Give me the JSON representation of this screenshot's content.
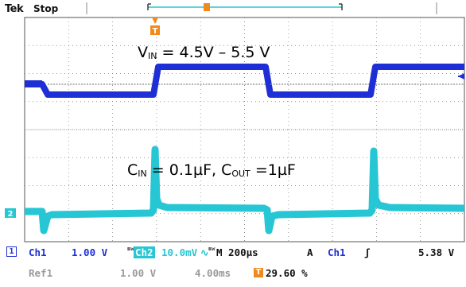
{
  "header": {
    "brand": "Tek",
    "acq_state": "Stop"
  },
  "annotations": {
    "vin_prefix": "V",
    "vin_sub": "IN",
    "vin_range": " = 4.5V – 5.5 V",
    "cin_prefix": "C",
    "cin_sub": "IN",
    "cin_value": " = 0.1µF, C",
    "cout_sub": "OUT",
    "cout_value": " =1µF"
  },
  "markers": {
    "ch2_ground_label": "2",
    "trigger_marker": "T"
  },
  "readout": {
    "ch1_box": "1",
    "ch1_label": "Ch1",
    "ch1_scale": "1.00 V",
    "bw_symbol": "ʙw",
    "ch2_label": "Ch2",
    "ch2_scale": "10.0mV",
    "ch2_coupling": "∿",
    "bw_symbol2": "ʙw",
    "timebase": "M 200µs",
    "trig_mode": "A",
    "trig_source": "Ch1",
    "trig_slope": "ʃ",
    "trig_level": "5.38 V",
    "ref_label": "Ref1",
    "ref_scale": "1.00 V",
    "ref_time": "4.00ms",
    "trig_pos_icon": "T",
    "trig_position": "29.60 %"
  },
  "colors": {
    "ch1": "#1f2fd6",
    "ch2": "#27c6d4",
    "trigger": "#f08a1c",
    "grid": "#7a7a7a",
    "background": "#ffffff"
  },
  "icons": {
    "ch1_ground_marker": "arrow-left-icon",
    "trigger_position_marker": "trigger-t-icon",
    "record_bar": "record-window-bar"
  }
}
